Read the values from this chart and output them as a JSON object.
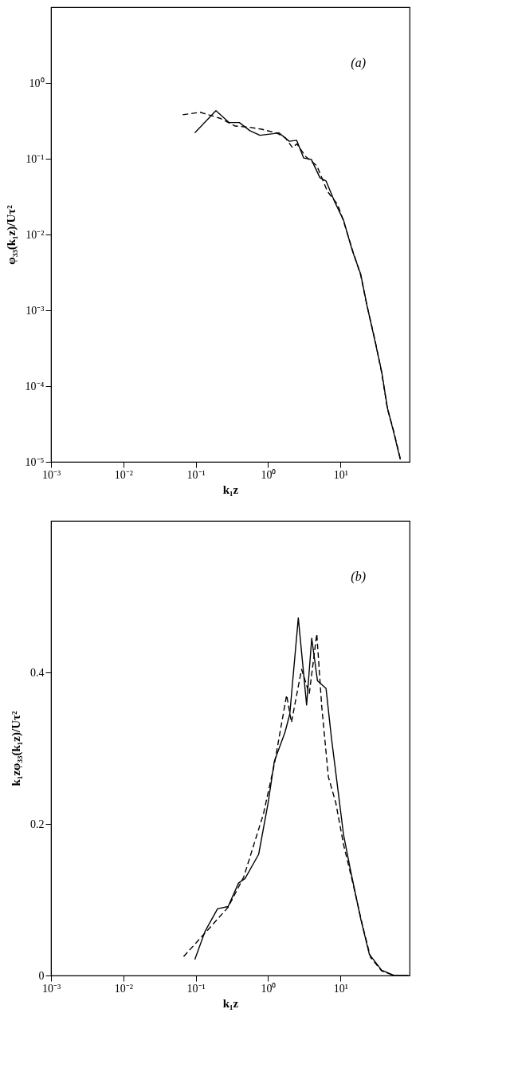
{
  "chart_data": [
    {
      "type": "line",
      "xlabel": "k₁z",
      "ylabel": "φ₃₃(k₁z)/Uτ²",
      "annotations": [
        "(a)"
      ],
      "log": "xy",
      "grid": false,
      "marker": "none",
      "xlim": [
        0.001,
        90
      ],
      "ylim": [
        1e-05,
        10
      ],
      "xticks": [
        {
          "value": 0.001,
          "label": "10⁻³"
        },
        {
          "value": 0.01,
          "label": "10⁻²"
        },
        {
          "value": 0.1,
          "label": "10⁻¹"
        },
        {
          "value": 1,
          "label": "10⁰"
        },
        {
          "value": 10,
          "label": "10¹"
        }
      ],
      "yticks": [
        {
          "value": 1e-05,
          "label": "10⁻⁵"
        },
        {
          "value": 0.0001,
          "label": "10⁻⁴"
        },
        {
          "value": 0.001,
          "label": "10⁻³"
        },
        {
          "value": 0.01,
          "label": "10⁻²"
        },
        {
          "value": 0.1,
          "label": "10⁻¹"
        },
        {
          "value": 1,
          "label": "10⁰"
        }
      ],
      "series": [
        {
          "color": "#000000",
          "line_style": "solid",
          "x": [
            0.097,
            0.19,
            0.29,
            0.4,
            0.56,
            0.77,
            1.17,
            1.41,
            1.96,
            2.48,
            3.1,
            3.95,
            5.2,
            6.3,
            8.3,
            11,
            14.5,
            19,
            23,
            30,
            37,
            44.5,
            54,
            67
          ],
          "values": [
            0.22,
            0.43,
            0.3,
            0.3,
            0.234,
            0.204,
            0.214,
            0.22,
            0.17,
            0.175,
            0.102,
            0.098,
            0.056,
            0.051,
            0.027,
            0.0155,
            0.0062,
            0.003,
            0.0012,
            0.00039,
            0.000155,
            5.1e-05,
            2.5e-05,
            1.07e-05
          ]
        },
        {
          "color": "#000000",
          "line_style": "dashed",
          "x": [
            0.066,
            0.115,
            0.22,
            0.35,
            0.56,
            0.81,
            1.29,
            1.72,
            2.17,
            2.5,
            3.3,
            4.7,
            6.6,
            9.1,
            11,
            14.5,
            19,
            23,
            30,
            37,
            44.5,
            54,
            67
          ],
          "values": [
            0.38,
            0.41,
            0.34,
            0.27,
            0.26,
            0.245,
            0.22,
            0.19,
            0.14,
            0.157,
            0.107,
            0.081,
            0.037,
            0.025,
            0.015,
            0.0064,
            0.0029,
            0.0012,
            0.0004,
            0.00015,
            5e-05,
            2.6e-05,
            1.1e-05
          ]
        }
      ]
    },
    {
      "type": "line",
      "xlabel": "k₁z",
      "ylabel": "k₁zφ₃₃(k₁z)/Uτ²",
      "annotations": [
        "(b)"
      ],
      "log": "x",
      "grid": false,
      "marker": "none",
      "xlim": [
        0.001,
        90
      ],
      "ylim": [
        0,
        0.6
      ],
      "xticks": [
        {
          "value": 0.001,
          "label": "10⁻³"
        },
        {
          "value": 0.01,
          "label": "10⁻²"
        },
        {
          "value": 0.1,
          "label": "10⁻¹"
        },
        {
          "value": 1,
          "label": "10⁰"
        },
        {
          "value": 10,
          "label": "10¹"
        }
      ],
      "yticks": [
        0,
        0.2,
        0.4
      ],
      "series": [
        {
          "color": "#000000",
          "line_style": "solid",
          "x": [
            0.097,
            0.134,
            0.2,
            0.28,
            0.39,
            0.48,
            0.74,
            1.0,
            1.22,
            1.71,
            1.99,
            2.61,
            3.4,
            4.0,
            4.8,
            6.3,
            7.5,
            9.1,
            11,
            14,
            19,
            25,
            37,
            55,
            87
          ],
          "values": [
            0.021,
            0.058,
            0.088,
            0.091,
            0.122,
            0.128,
            0.16,
            0.228,
            0.283,
            0.321,
            0.345,
            0.472,
            0.357,
            0.445,
            0.389,
            0.379,
            0.313,
            0.249,
            0.186,
            0.135,
            0.075,
            0.028,
            0.007,
            0,
            0
          ]
        },
        {
          "color": "#000000",
          "line_style": "dashed",
          "x": [
            0.068,
            0.14,
            0.28,
            0.46,
            0.86,
            1.22,
            1.8,
            2.1,
            2.7,
            2.9,
            3.7,
            4.7,
            5.5,
            6.8,
            8.6,
            11,
            14.8,
            20,
            26,
            37,
            55
          ],
          "values": [
            0.025,
            0.058,
            0.09,
            0.13,
            0.213,
            0.279,
            0.37,
            0.334,
            0.389,
            0.404,
            0.372,
            0.451,
            0.355,
            0.262,
            0.228,
            0.173,
            0.122,
            0.067,
            0.024,
            0.006,
            0
          ]
        }
      ]
    }
  ]
}
